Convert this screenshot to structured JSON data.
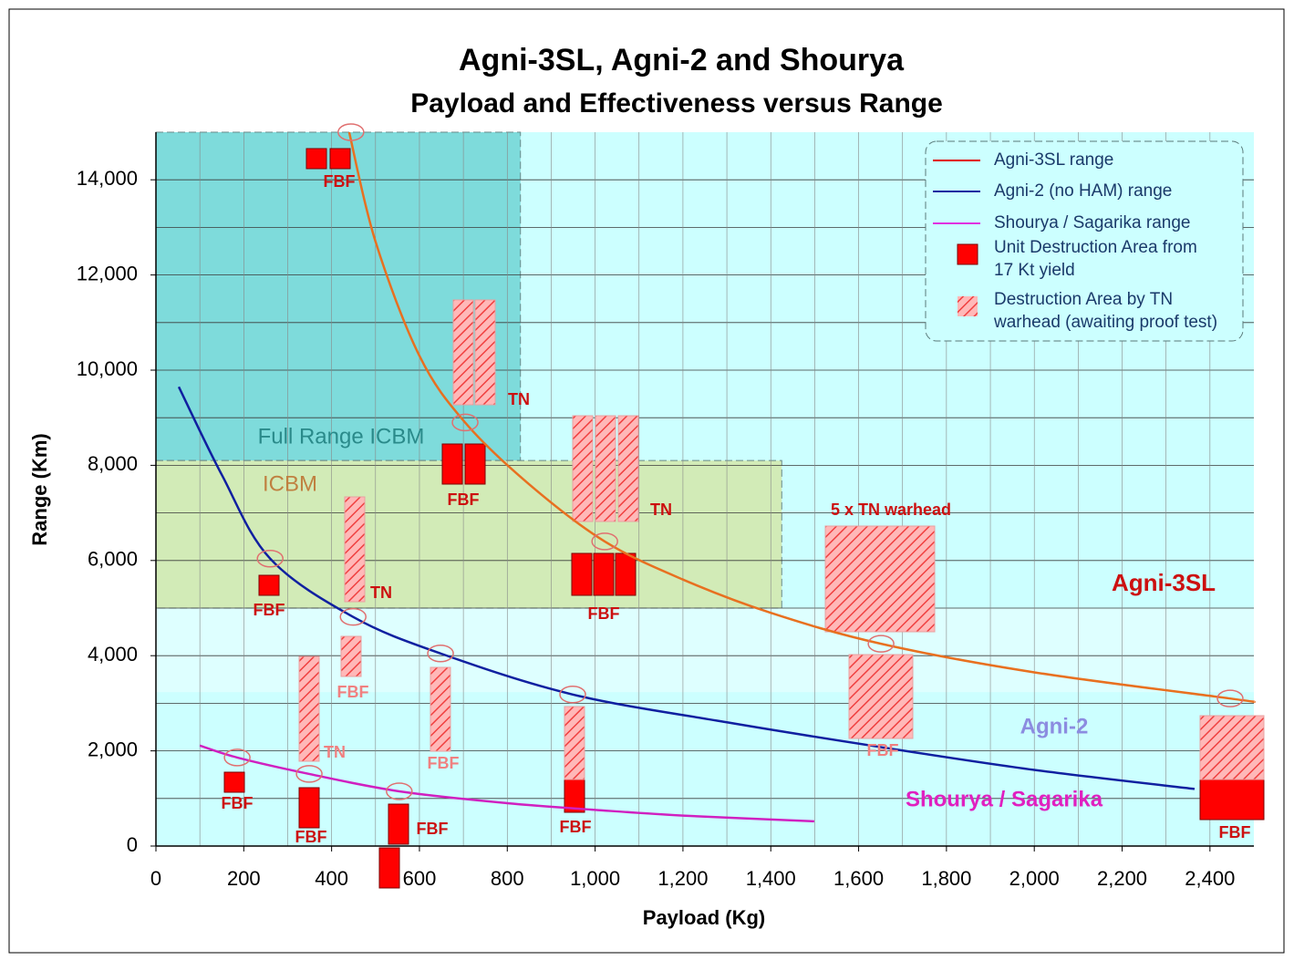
{
  "chart_data": {
    "type": "line",
    "title": "Agni-3SL, Agni-2 and Shourya",
    "subtitle": "Payload and Effectiveness versus Range",
    "x_label": "Payload (Kg)",
    "y_label": "Range (Km)",
    "xlim": [
      0,
      2500
    ],
    "ylim": [
      0,
      15000
    ],
    "xticks": [
      0,
      200,
      400,
      600,
      800,
      {
        "value": 1000,
        "label": "1,000"
      },
      {
        "value": 1200,
        "label": "1,200"
      },
      {
        "value": 1400,
        "label": "1,400"
      },
      {
        "value": 1600,
        "label": "1,600"
      },
      {
        "value": 1800,
        "label": "1,800"
      },
      {
        "value": 2000,
        "label": "2,000"
      },
      {
        "value": 2200,
        "label": "2,200"
      },
      {
        "value": 2400,
        "label": "2,400"
      }
    ],
    "yticks": [
      0,
      {
        "value": 2000,
        "label": "2,000"
      },
      {
        "value": 4000,
        "label": "4,000"
      },
      {
        "value": 6000,
        "label": "6,000"
      },
      {
        "value": 8000,
        "label": "8,000"
      },
      {
        "value": 10000,
        "label": "10,000"
      },
      {
        "value": 12000,
        "label": "12,000"
      },
      {
        "value": 14000,
        "label": "14,000"
      }
    ],
    "grid": true,
    "legend_position": "upper right",
    "series": [
      {
        "name": "Agni-3SL range",
        "color": "#e87020",
        "legend_color": "#e00000",
        "x": [
          440,
          500,
          600,
          704,
          850,
          1022,
          1200,
          1400,
          1651,
          2000,
          2446,
          2500
        ],
        "values": [
          15000,
          12700,
          10300,
          8900,
          7600,
          6400,
          5600,
          4900,
          4250,
          3650,
          3100,
          3030
        ],
        "markers": {
          "x": [
            444,
            704,
            1022,
            1651,
            2446
          ],
          "values": [
            15000,
            8900,
            6400,
            4250,
            3100
          ]
        }
      },
      {
        "name": "Agni-2 (no HAM) range",
        "color": "#1020a0",
        "legend_color": "#1020a0",
        "x": [
          52,
          150,
          260,
          449,
          648,
          949,
          1300,
          1650,
          2000,
          2365
        ],
        "values": [
          9650,
          7800,
          6040,
          4815,
          4047,
          3184,
          2600,
          2080,
          1600,
          1200
        ],
        "markers": {
          "x": [
            260,
            449,
            648,
            949
          ],
          "values": [
            6040,
            4815,
            4047,
            3184
          ]
        }
      },
      {
        "name": "Shourya / Sagarika range",
        "color": "#d020c0",
        "legend_color": "#e030e0",
        "x": [
          100,
          185,
          349,
          554,
          800,
          1000,
          1200,
          1499
        ],
        "values": [
          2110,
          1860,
          1515,
          1150,
          900,
          760,
          640,
          520
        ],
        "markers": {
          "x": [
            185,
            349,
            554
          ],
          "values": [
            1860,
            1515,
            1150
          ]
        }
      }
    ],
    "legend_extra": [
      {
        "name": "Unit Destruction Area from",
        "name2": "17 Kt yield",
        "color": "#ff0000"
      },
      {
        "name": "Destruction Area by TN",
        "name2": "warhead (awaiting proof test)",
        "color": "#ff9090"
      }
    ],
    "regions": [
      {
        "label": "Full Range ICBM",
        "xlim": [
          0,
          830
        ],
        "ylim": [
          8100,
          15000
        ],
        "color": "#30b8b8"
      },
      {
        "label": "ICBM",
        "xlim": [
          0,
          1425
        ],
        "ylim": [
          5000,
          8100
        ],
        "color": "#d8d870"
      }
    ],
    "series_labels": [
      "Agni-3SL",
      "Agni-2",
      "Shourya / Sagarika",
      "5 x TN warhead"
    ],
    "annotations": [
      "FBF",
      "FBF",
      "FBF",
      "FBF",
      "FBF",
      "FBF",
      "FBF",
      "FBF",
      "FBF",
      "FBF",
      "FBF",
      "FBF",
      "TN",
      "TN",
      "TN",
      "TN"
    ]
  }
}
